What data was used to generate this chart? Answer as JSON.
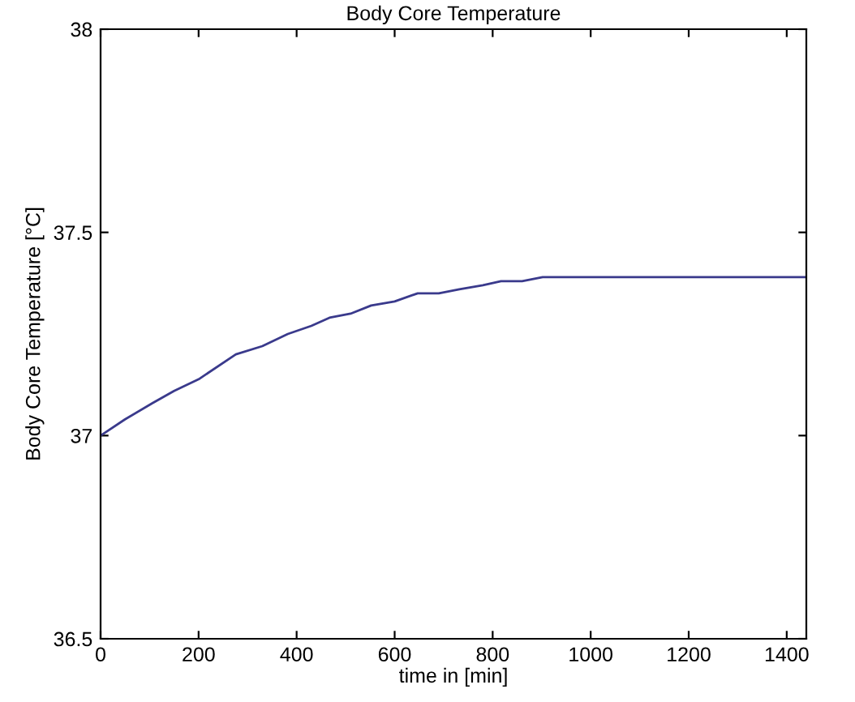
{
  "chart_data": {
    "type": "line",
    "title": "Body Core Temperature",
    "xlabel": "time in [min]",
    "ylabel": "Body Core Temperature [°C]",
    "x": [
      0,
      50,
      106,
      150,
      202,
      276,
      330,
      382,
      430,
      467,
      510,
      552,
      600,
      647,
      690,
      732,
      780,
      817,
      860,
      902,
      980,
      1061,
      1200,
      1440
    ],
    "series": [
      {
        "color": "#3a3a8c",
        "values": [
          37.0,
          37.04,
          37.08,
          37.11,
          37.14,
          37.2,
          37.22,
          37.25,
          37.27,
          37.29,
          37.3,
          37.32,
          37.33,
          37.35,
          37.35,
          37.36,
          37.37,
          37.38,
          37.38,
          37.39,
          37.39,
          37.39,
          37.39,
          37.39
        ]
      }
    ],
    "xlim": [
      0,
      1440
    ],
    "ylim": [
      36.5,
      38
    ],
    "xticks": [
      0,
      200,
      400,
      600,
      800,
      1000,
      1200,
      1400
    ],
    "yticks": [
      36.5,
      37,
      37.5,
      38
    ],
    "grid": false
  }
}
